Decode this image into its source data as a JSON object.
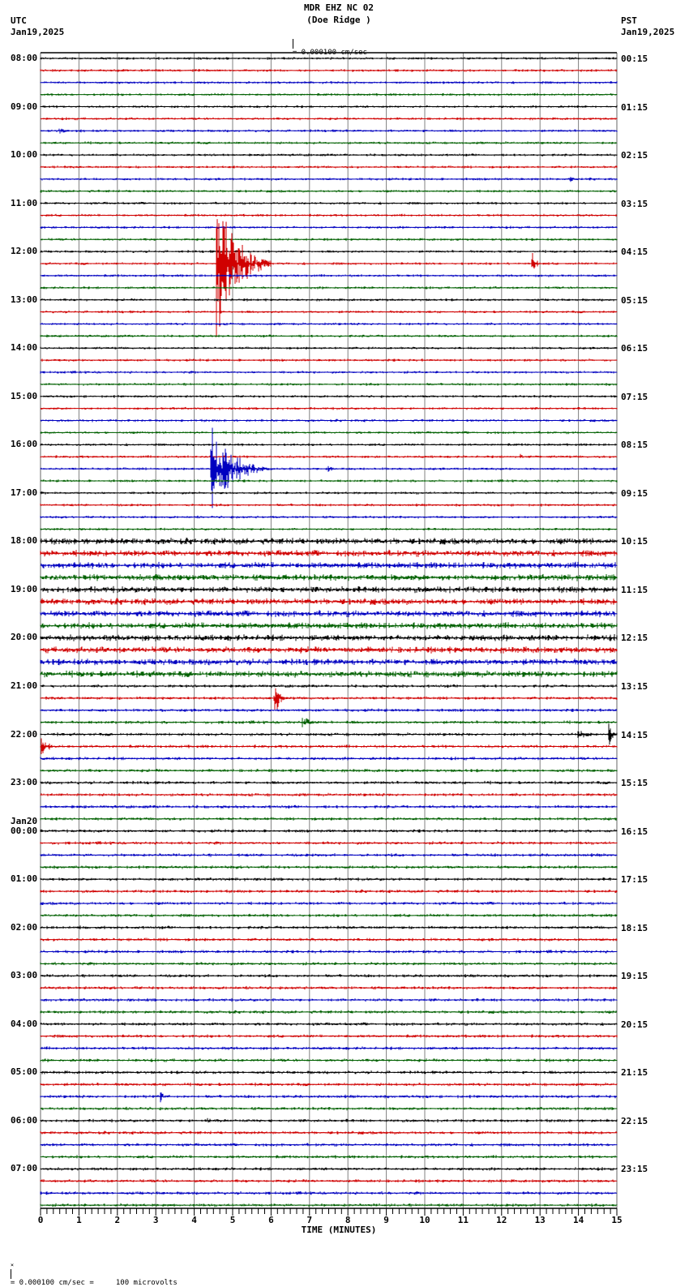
{
  "header": {
    "station": "MDR EHZ NC 02",
    "site": "(Doe Ridge )",
    "left_tz": "UTC",
    "left_date": "Jan19,2025",
    "right_tz": "PST",
    "right_date": "Jan19,2025",
    "scale_text": "= 0.000100 cm/sec"
  },
  "footer": {
    "scale_text": "= 0.000100 cm/sec =     100 microvolts"
  },
  "axis": {
    "title": "TIME (MINUTES)",
    "ticks": [
      "0",
      "1",
      "2",
      "3",
      "4",
      "5",
      "6",
      "7",
      "8",
      "9",
      "10",
      "11",
      "12",
      "13",
      "14",
      "15"
    ]
  },
  "colors": {
    "trace_cycle": [
      "#000000",
      "#d00000",
      "#0000c0",
      "#006000"
    ],
    "grid": "#808080",
    "background": "#ffffff"
  },
  "left_labels": [
    {
      "text": "08:00",
      "row": 0
    },
    {
      "text": "09:00",
      "row": 4
    },
    {
      "text": "10:00",
      "row": 8
    },
    {
      "text": "11:00",
      "row": 12
    },
    {
      "text": "12:00",
      "row": 16
    },
    {
      "text": "13:00",
      "row": 20
    },
    {
      "text": "14:00",
      "row": 24
    },
    {
      "text": "15:00",
      "row": 28
    },
    {
      "text": "16:00",
      "row": 32
    },
    {
      "text": "17:00",
      "row": 36
    },
    {
      "text": "18:00",
      "row": 40
    },
    {
      "text": "19:00",
      "row": 44
    },
    {
      "text": "20:00",
      "row": 48
    },
    {
      "text": "21:00",
      "row": 52
    },
    {
      "text": "22:00",
      "row": 56
    },
    {
      "text": "23:00",
      "row": 60
    },
    {
      "text": "Jan20\n00:00",
      "row": 64
    },
    {
      "text": "01:00",
      "row": 68
    },
    {
      "text": "02:00",
      "row": 72
    },
    {
      "text": "03:00",
      "row": 76
    },
    {
      "text": "04:00",
      "row": 80
    },
    {
      "text": "05:00",
      "row": 84
    },
    {
      "text": "06:00",
      "row": 88
    },
    {
      "text": "07:00",
      "row": 92
    }
  ],
  "right_labels": [
    {
      "text": "00:15",
      "row": 0
    },
    {
      "text": "01:15",
      "row": 4
    },
    {
      "text": "02:15",
      "row": 8
    },
    {
      "text": "03:15",
      "row": 12
    },
    {
      "text": "04:15",
      "row": 16
    },
    {
      "text": "05:15",
      "row": 20
    },
    {
      "text": "06:15",
      "row": 24
    },
    {
      "text": "07:15",
      "row": 28
    },
    {
      "text": "08:15",
      "row": 32
    },
    {
      "text": "09:15",
      "row": 36
    },
    {
      "text": "10:15",
      "row": 40
    },
    {
      "text": "11:15",
      "row": 44
    },
    {
      "text": "12:15",
      "row": 48
    },
    {
      "text": "13:15",
      "row": 52
    },
    {
      "text": "14:15",
      "row": 56
    },
    {
      "text": "15:15",
      "row": 60
    },
    {
      "text": "16:15",
      "row": 64
    },
    {
      "text": "17:15",
      "row": 68
    },
    {
      "text": "18:15",
      "row": 72
    },
    {
      "text": "19:15",
      "row": 76
    },
    {
      "text": "20:15",
      "row": 80
    },
    {
      "text": "21:15",
      "row": 84
    },
    {
      "text": "22:15",
      "row": 88
    },
    {
      "text": "23:15",
      "row": 92
    }
  ],
  "chart_data": {
    "type": "line",
    "title": "MDR EHZ NC 02 (Doe Ridge )",
    "xlabel": "TIME (MINUTES)",
    "ylabel": "UTC hour (left) / PST hour (right)",
    "xlim": [
      0,
      15
    ],
    "x_ticks": [
      0,
      1,
      2,
      3,
      4,
      5,
      6,
      7,
      8,
      9,
      10,
      11,
      12,
      13,
      14,
      15
    ],
    "rows": 96,
    "minutes_per_row": 15,
    "start_utc": "Jan19,2025 08:00",
    "end_utc": "Jan20,2025 08:00",
    "scale": "0.000100 cm/sec = 100 microvolts",
    "grid": true,
    "noise_levels": [
      {
        "rows": [
          0,
          39
        ],
        "amplitude": 1.5
      },
      {
        "rows": [
          40,
          51
        ],
        "amplitude": 3.5
      },
      {
        "rows": [
          52,
          95
        ],
        "amplitude": 1.8
      }
    ],
    "events": [
      {
        "row": 17,
        "minute": 4.6,
        "amplitude": 130,
        "duration_min": 1.4,
        "color": "red",
        "note": "large event spanning ~12:00 UTC, red trace"
      },
      {
        "row": 17,
        "minute": 12.8,
        "amplitude": 22,
        "duration_min": 0.3,
        "color": "red",
        "note": "small event near 12:15 UTC"
      },
      {
        "row": 34,
        "minute": 4.45,
        "amplitude": 70,
        "duration_min": 1.5,
        "color": "blue",
        "note": "event near 16:30 UTC, blue trace"
      },
      {
        "row": 34,
        "minute": 7.5,
        "amplitude": 5,
        "duration_min": 0.6,
        "color": "blue"
      },
      {
        "row": 53,
        "minute": 6.1,
        "amplitude": 28,
        "duration_min": 0.4,
        "color": "red",
        "note": "event near 21:15 UTC"
      },
      {
        "row": 55,
        "minute": 6.8,
        "amplitude": 8,
        "duration_min": 1.2,
        "color": "green"
      },
      {
        "row": 56,
        "minute": 14.0,
        "amplitude": 8,
        "duration_min": 0.8,
        "color": "black"
      },
      {
        "row": 56,
        "minute": 14.8,
        "amplitude": 30,
        "duration_min": 0.2,
        "color": "black",
        "note": "event near 22:15 UTC"
      },
      {
        "row": 57,
        "minute": 0.05,
        "amplitude": 12,
        "duration_min": 0.6,
        "color": "red",
        "note": "coda continuing at 22:15 UTC"
      },
      {
        "row": 86,
        "minute": 3.15,
        "amplitude": 8,
        "duration_min": 0.3,
        "color": "blue",
        "note": "small event near 05:30 UTC"
      },
      {
        "row": 94,
        "minute": 5.4,
        "amplitude": 5,
        "duration_min": 0.3,
        "color": "blue"
      },
      {
        "row": 88,
        "minute": 4.3,
        "amplitude": 4,
        "duration_min": 0.8,
        "color": "black"
      },
      {
        "row": 6,
        "minute": 0.5,
        "amplitude": 4,
        "duration_min": 0.8,
        "color": "blue"
      },
      {
        "row": 10,
        "minute": 13.8,
        "amplitude": 4,
        "duration_min": 0.5,
        "color": "blue"
      },
      {
        "row": 33,
        "minute": 12.5,
        "amplitude": 4,
        "duration_min": 0.5,
        "color": "red"
      },
      {
        "row": 43,
        "minute": 3.0,
        "amplitude": 6,
        "duration_min": 0.9,
        "color": "green"
      },
      {
        "row": 72,
        "minute": 1.0,
        "amplitude": 3,
        "duration_min": 0.8,
        "color": "black"
      }
    ]
  }
}
